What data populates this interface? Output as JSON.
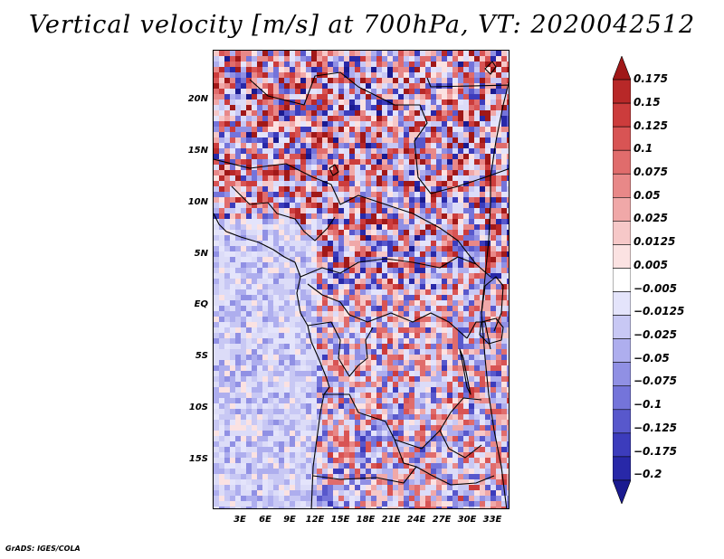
{
  "title": "Vertical velocity [m/s] at 700hPa, VT: 2020042512",
  "map": {
    "variable": "vertical velocity",
    "level": "700hPa",
    "valid_time": "2020042512",
    "lat_labels": [
      "20N",
      "15N",
      "10N",
      "5N",
      "EQ",
      "5S",
      "10S",
      "15S"
    ],
    "lon_labels": [
      "3E",
      "6E",
      "9E",
      "12E",
      "15E",
      "18E",
      "21E",
      "24E",
      "27E",
      "30E",
      "33E"
    ],
    "extent": {
      "lon_min": 0,
      "lon_max": 36,
      "lat_min": -20,
      "lat_max": 24.5
    }
  },
  "colorbar": {
    "labels": [
      "0.175",
      "0.15",
      "0.125",
      "0.1",
      "0.075",
      "0.05",
      "0.025",
      "0.0125",
      "0.005",
      "−0.005",
      "−0.0125",
      "−0.025",
      "−0.05",
      "−0.075",
      "−0.1",
      "−0.125",
      "−0.175",
      "−0.2"
    ],
    "colors": [
      "#a01818",
      "#b82828",
      "#cc3c3c",
      "#d85454",
      "#e06c6c",
      "#e88888",
      "#f0a8a8",
      "#f6c8c8",
      "#fbe2e2",
      "#ffffff",
      "#e4e4fb",
      "#c8c8f4",
      "#aeaeee",
      "#9090e4",
      "#7474da",
      "#5858cc",
      "#3c3cbc",
      "#2828a8",
      "#1a1a90"
    ],
    "high_arrow_color": "#a01818",
    "low_arrow_color": "#1a1a90"
  },
  "footer": "GrADS: IGES/COLA"
}
